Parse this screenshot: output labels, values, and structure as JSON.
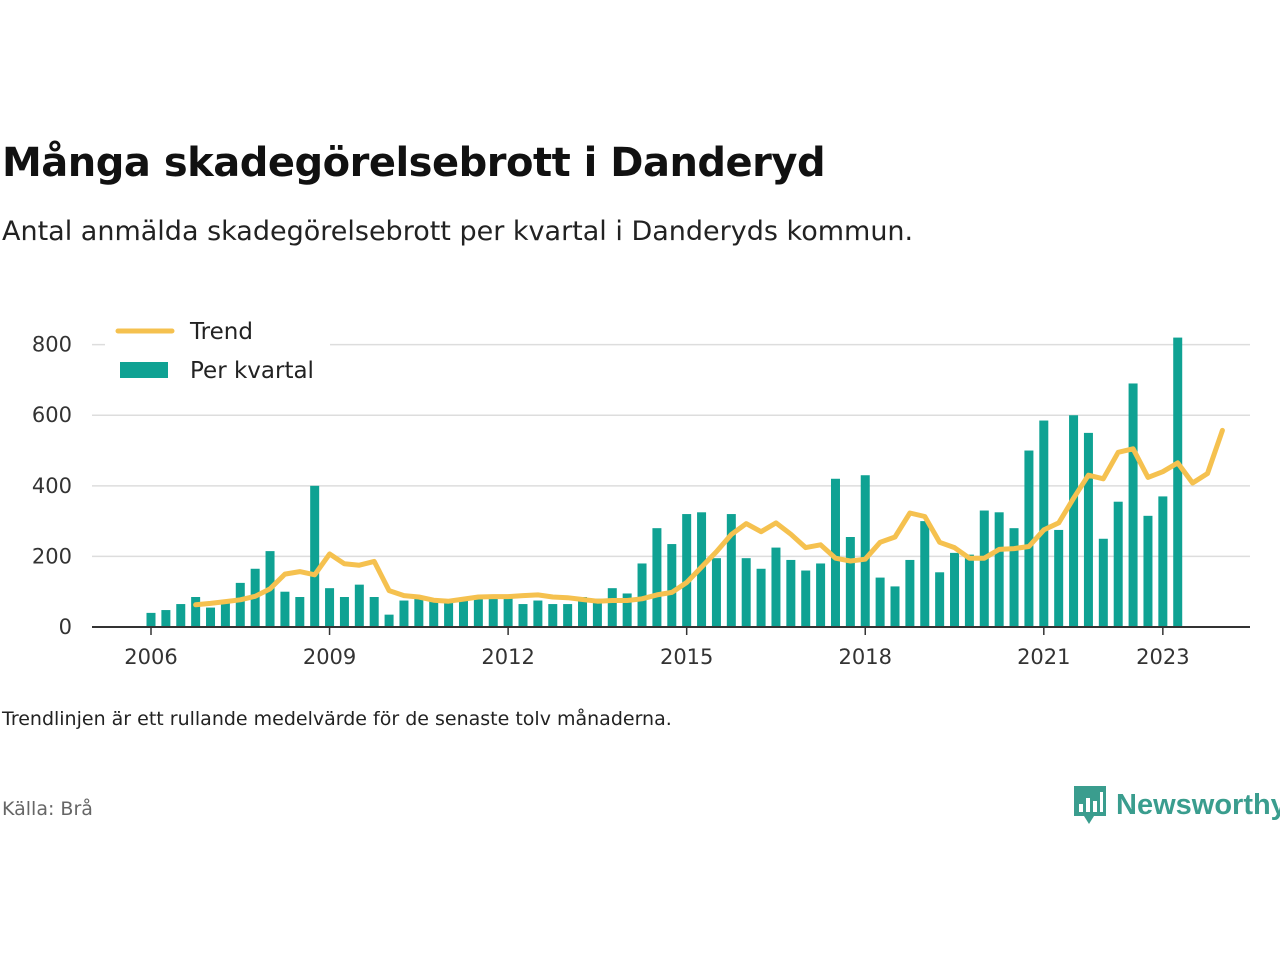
{
  "title": "Många skadegörelsebrott i Danderyd",
  "subtitle": "Antal anmälda skadegörelsebrott per kvartal i Danderyds kommun.",
  "note": "Trendlinjen är ett rullande medelvärde för de senaste tolv månaderna.",
  "source": "Källa: Brå",
  "brand": {
    "name": "Newsworthy",
    "icon": "newsworthy-bar-chart-icon"
  },
  "colors": {
    "bars": "#0fa293",
    "trend": "#f5c14f",
    "grid": "#dddddd",
    "axis": "#333333"
  },
  "chart_data": {
    "type": "bar",
    "grid": true,
    "legend_position": "top-left",
    "ylim": [
      0,
      850
    ],
    "yticks": [
      0,
      200,
      400,
      600,
      800
    ],
    "xticks": [
      {
        "label": "2006",
        "index": 0
      },
      {
        "label": "2009",
        "index": 12
      },
      {
        "label": "2012",
        "index": 24
      },
      {
        "label": "2015",
        "index": 36
      },
      {
        "label": "2018",
        "index": 48
      },
      {
        "label": "2021",
        "index": 60
      },
      {
        "label": "2023",
        "index": 68
      }
    ],
    "start": {
      "year": 2006,
      "quarter": 1
    },
    "series": [
      {
        "name": "Per kvartal",
        "kind": "bar",
        "values": [
          40,
          48,
          65,
          85,
          55,
          70,
          125,
          165,
          215,
          100,
          85,
          400,
          110,
          85,
          120,
          85,
          35,
          75,
          85,
          75,
          70,
          80,
          85,
          85,
          85,
          65,
          75,
          65,
          65,
          85,
          80,
          110,
          95,
          180,
          280,
          235,
          320,
          325,
          195,
          320,
          195,
          165,
          225,
          190,
          160,
          180,
          420,
          255,
          430,
          140,
          115,
          190,
          300,
          155,
          210,
          205,
          330,
          325,
          280,
          500,
          585,
          275,
          600,
          550,
          250,
          355,
          690,
          315,
          370,
          820
        ]
      },
      {
        "name": "Trend",
        "kind": "line",
        "start_index": 3,
        "values": [
          63,
          67,
          72,
          77,
          87,
          108,
          150,
          157,
          148,
          207,
          179,
          175,
          186,
          103,
          89,
          85,
          76,
          73,
          79,
          85,
          86,
          86,
          89,
          91,
          85,
          83,
          78,
          73,
          75,
          75,
          80,
          91,
          98,
          126,
          170,
          213,
          262,
          293,
          270,
          295,
          263,
          225,
          233,
          195,
          187,
          192,
          240,
          255,
          323,
          313,
          240,
          225,
          195,
          195,
          220,
          222,
          228,
          275,
          295,
          365,
          430,
          420,
          495,
          505,
          424,
          440,
          465,
          408,
          435,
          557
        ]
      }
    ]
  }
}
